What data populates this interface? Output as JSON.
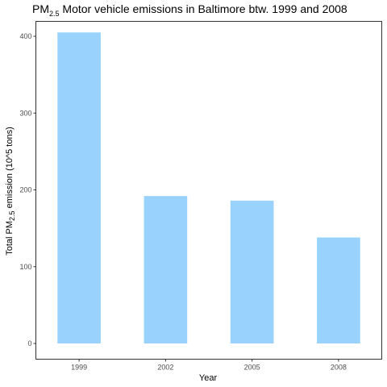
{
  "title": {
    "prefix": "PM",
    "subscript": "2.5",
    "suffix": " Motor vehicle emissions in Baltimore btw. 1999 and 2008"
  },
  "y_label": {
    "prefix": "Total PM",
    "subscript": "2.5",
    "suffix": " emission (10^5 tons)"
  },
  "x_label": "Year",
  "colors": {
    "bar": "#99d3fd",
    "axis": "#333333",
    "tick_text": "#4d4d4d"
  },
  "chart_data": {
    "type": "bar",
    "title": "PM2.5 Motor vehicle emissions in Baltimore btw. 1999 and 2008",
    "xlabel": "Year",
    "ylabel": "Total PM2.5 emission (10^5 tons)",
    "categories": [
      "1999",
      "2002",
      "2005",
      "2008"
    ],
    "values": [
      405,
      192,
      186,
      138
    ],
    "ylim": [
      0,
      420
    ],
    "yticks": [
      0,
      100,
      200,
      300,
      400
    ],
    "grid": false,
    "legend": "none"
  }
}
